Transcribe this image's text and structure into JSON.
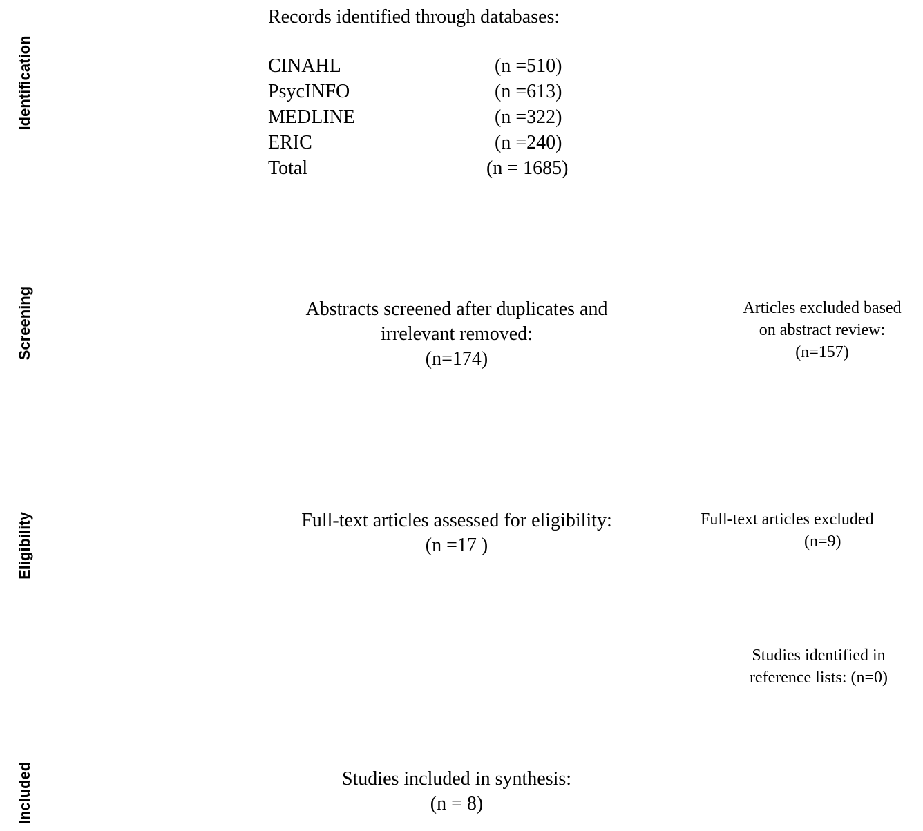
{
  "stages": {
    "identification": "Identification",
    "screening": "Screening",
    "eligibility": "Eligibility",
    "included": "Included"
  },
  "identification": {
    "heading": "Records identified through databases:",
    "databases": [
      {
        "name": "CINAHL",
        "count": "(n =510)"
      },
      {
        "name": "PsycINFO",
        "count": "(n =613)"
      },
      {
        "name": "MEDLINE",
        "count": "(n =322)"
      },
      {
        "name": "ERIC",
        "count": "(n =240)"
      },
      {
        "name": "Total",
        "count": "(n = 1685)"
      }
    ]
  },
  "screening": {
    "main": [
      "Abstracts screened after duplicates and",
      "irrelevant removed:",
      "(n=174)"
    ],
    "excluded": [
      "Articles excluded based",
      "on abstract review:",
      "(n=157)"
    ]
  },
  "eligibility": {
    "main": [
      "Full-text articles assessed for eligibility:",
      "(n =17 )"
    ],
    "excluded": [
      "Full-text articles excluded",
      "(n=9)"
    ],
    "references": [
      "Studies identified in",
      "reference lists: (n=0)"
    ]
  },
  "included": {
    "main": [
      "Studies included in synthesis:",
      "(n = 8)"
    ]
  }
}
